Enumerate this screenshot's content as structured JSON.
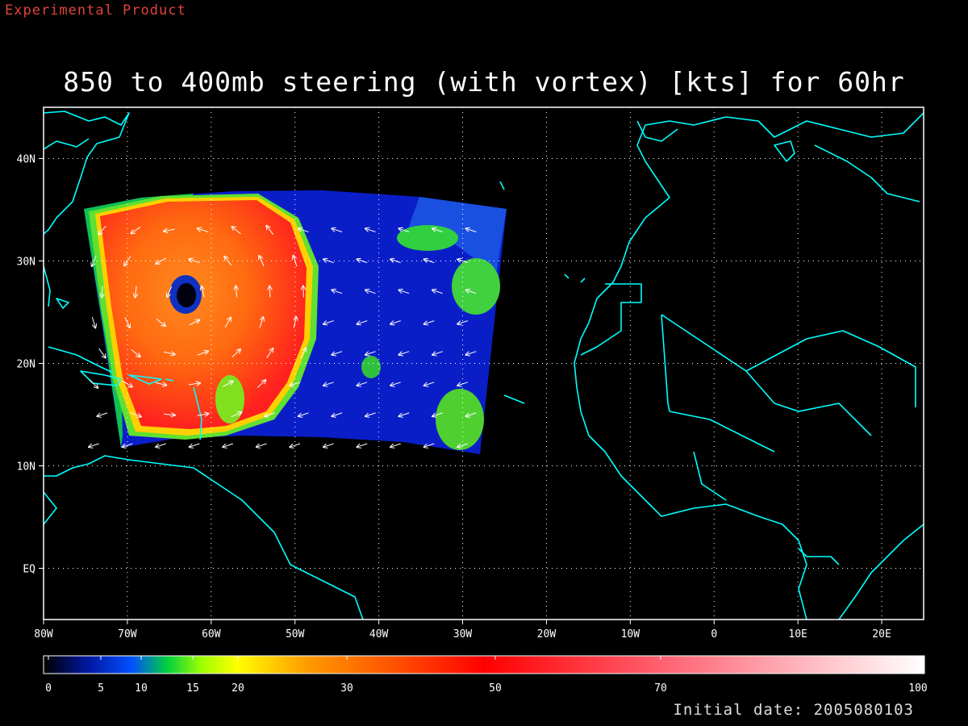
{
  "header": {
    "product_note": "Experimental Product",
    "title": "850 to 400mb steering (with vortex) [kts] for 60hr",
    "initial_date_label": "Initial date: 2005080103"
  },
  "map": {
    "lon_range": [
      -80,
      25
    ],
    "lat_range": [
      -5,
      45
    ],
    "lon_ticks": [
      {
        "value": -80,
        "label": "80W"
      },
      {
        "value": -70,
        "label": "70W"
      },
      {
        "value": -60,
        "label": "60W"
      },
      {
        "value": -50,
        "label": "50W"
      },
      {
        "value": -40,
        "label": "40W"
      },
      {
        "value": -30,
        "label": "30W"
      },
      {
        "value": -20,
        "label": "20W"
      },
      {
        "value": -10,
        "label": "10W"
      },
      {
        "value": 0,
        "label": "0"
      },
      {
        "value": 10,
        "label": "10E"
      },
      {
        "value": 20,
        "label": "20E"
      }
    ],
    "lat_ticks": [
      {
        "value": 40,
        "label": "40N"
      },
      {
        "value": 30,
        "label": "30N"
      },
      {
        "value": 20,
        "label": "20N"
      },
      {
        "value": 10,
        "label": "10N"
      },
      {
        "value": 0,
        "label": "EQ"
      }
    ],
    "coast_color": "#00ffff",
    "grid": "dotted",
    "vortex_center": {
      "lon": -63.5,
      "lat": 26.5
    }
  },
  "colorbar": {
    "range": [
      0,
      100
    ],
    "ticks": [
      {
        "value": 0,
        "label": "0"
      },
      {
        "value": 5,
        "label": "5"
      },
      {
        "value": 10,
        "label": "10"
      },
      {
        "value": 15,
        "label": "15"
      },
      {
        "value": 20,
        "label": "20"
      },
      {
        "value": 30,
        "label": "30"
      },
      {
        "value": 50,
        "label": "50"
      },
      {
        "value": 70,
        "label": "70"
      },
      {
        "value": 100,
        "label": "100"
      }
    ]
  }
}
